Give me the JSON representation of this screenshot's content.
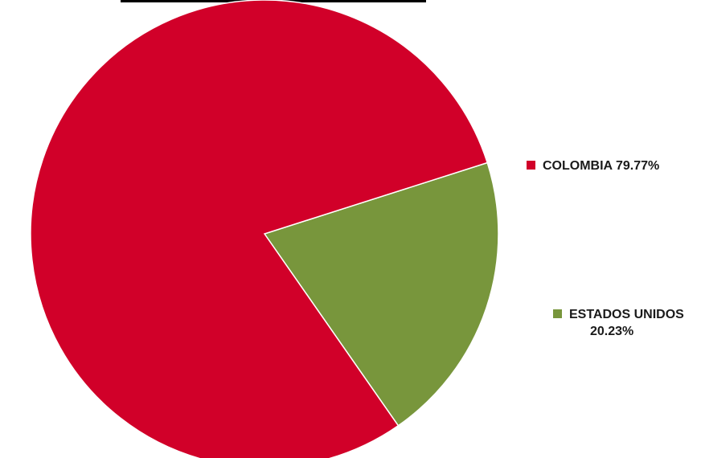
{
  "chart_data": {
    "type": "pie",
    "slices": [
      {
        "label": "COLOMBIA",
        "percent_label": "79.77%",
        "value": 79.77,
        "color": "#d10029"
      },
      {
        "label": "ESTADOS UNIDOS",
        "percent_label": "20.23%",
        "value": 20.23,
        "color": "#78963c"
      }
    ],
    "legend_placement": "right",
    "start_angle_deg": 72.3,
    "direction": "clockwise"
  },
  "colors": {
    "background": "#ffffff",
    "slice_border": "#ffffff",
    "cropped_title_text": "#000000"
  }
}
